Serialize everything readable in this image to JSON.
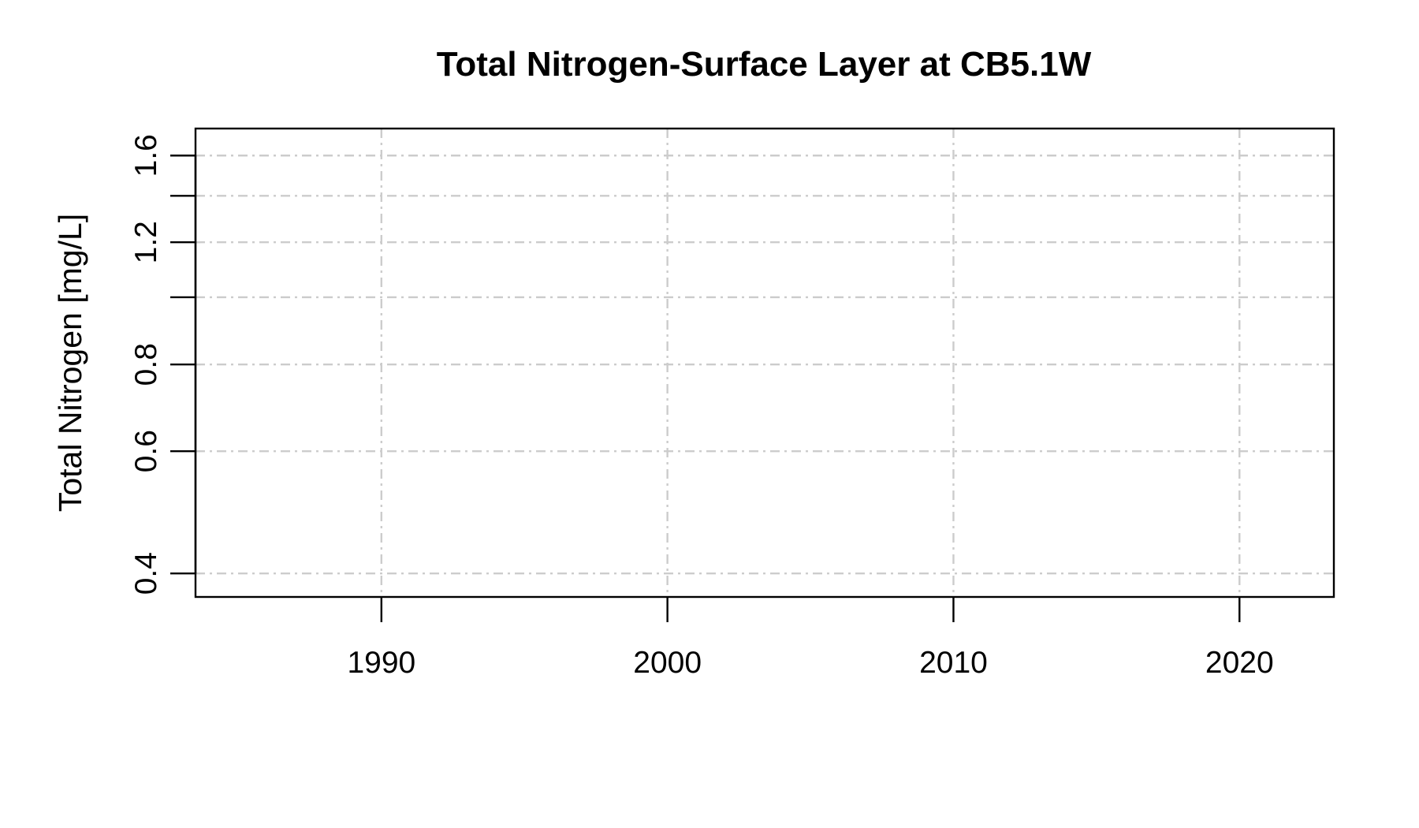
{
  "chart_data": {
    "type": "scatter",
    "title": "Total Nitrogen-Surface Layer at CB5.1W",
    "xlabel": "",
    "ylabel": "Total Nitrogen [mg/L]",
    "x_scale": "linear",
    "y_scale": "log",
    "xlim": [
      1983.5,
      2023.3
    ],
    "ylim": [
      0.37,
      1.75
    ],
    "x_ticks": [
      1990,
      2000,
      2010,
      2020
    ],
    "x_tick_labels": [
      "1990",
      "2000",
      "2010",
      "2020"
    ],
    "y_ticks": [
      0.4,
      0.6,
      0.8,
      1.0,
      1.2,
      1.4,
      1.6
    ],
    "y_tick_labels": [
      "0.4",
      "0.6",
      "0.8",
      "",
      "1.2",
      "",
      "1.6"
    ],
    "grid": true,
    "colors": {
      "grid": "#cccccc",
      "axis": "#000000",
      "background": "#ffffff"
    },
    "series": []
  }
}
